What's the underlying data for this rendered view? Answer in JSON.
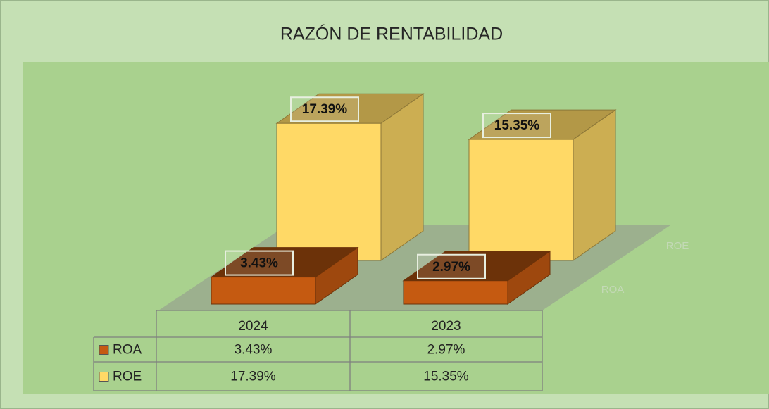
{
  "chart_data": {
    "type": "bar3d",
    "title": "RAZÓN DE RENTABILIDAD",
    "categories": [
      "2024",
      "2023"
    ],
    "series": [
      {
        "name": "ROA",
        "color": "#c55a11",
        "values": [
          3.43,
          2.97
        ],
        "value_labels": [
          "3.43%",
          "2.97%"
        ]
      },
      {
        "name": "ROE",
        "color": "#ffd966",
        "values": [
          17.39,
          15.35
        ],
        "value_labels": [
          "17.39%",
          "15.35%"
        ]
      }
    ],
    "data_table": true
  }
}
